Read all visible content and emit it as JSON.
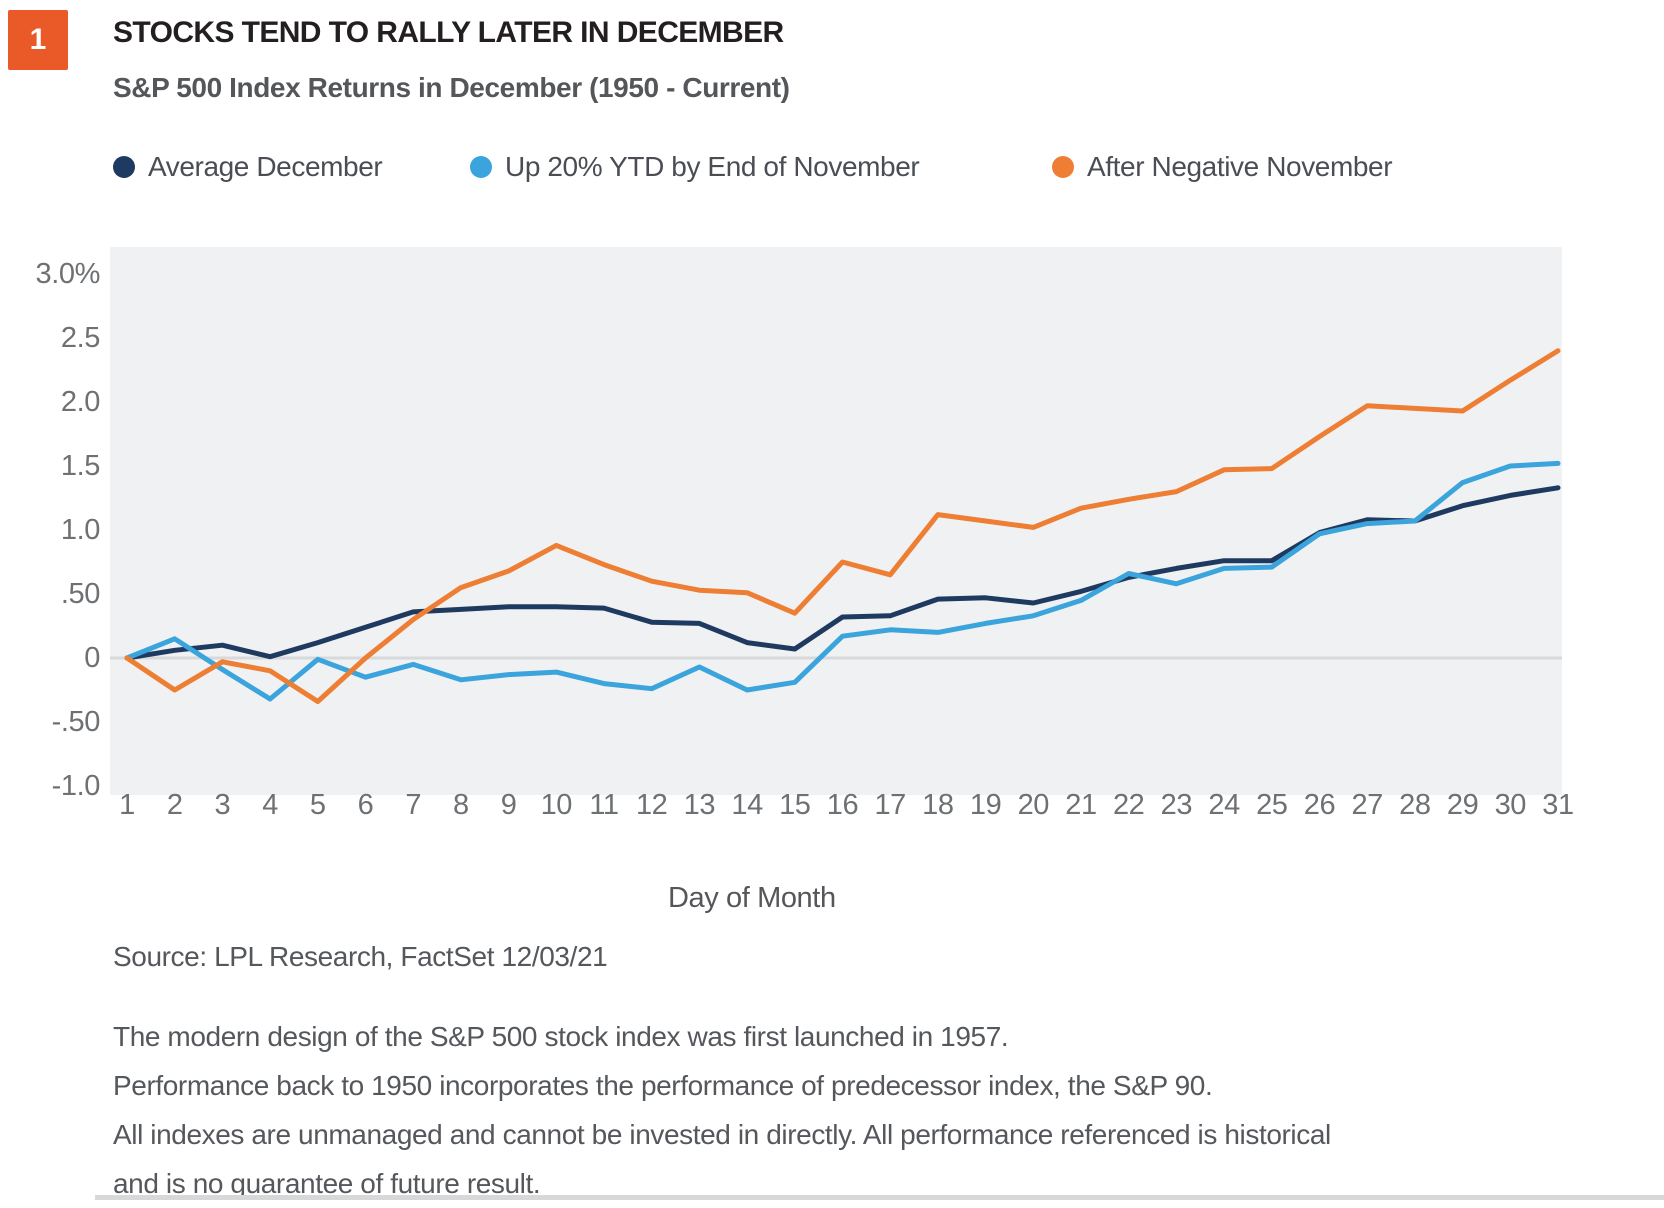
{
  "badge": {
    "number": "1",
    "color": "#EA5A28"
  },
  "header": {
    "title": "STOCKS TEND TO RALLY LATER IN DECEMBER",
    "subtitle": "S&P 500 Index Returns in December (1950 - Current)"
  },
  "legend": [
    {
      "label": "Average December",
      "color": "#1F3A60"
    },
    {
      "label": "Up 20% YTD by End of November",
      "color": "#3BA4DC"
    },
    {
      "label": "After Negative November",
      "color": "#ED7E33"
    }
  ],
  "chart_data": {
    "type": "line",
    "title": "STOCKS TEND TO RALLY LATER IN DECEMBER",
    "subtitle": "S&P 500 Index Returns in December (1950 - Current)",
    "xlabel": "Day of Month",
    "ylabel": "",
    "x": [
      1,
      2,
      3,
      4,
      5,
      6,
      7,
      8,
      9,
      10,
      11,
      12,
      13,
      14,
      15,
      16,
      17,
      18,
      19,
      20,
      21,
      22,
      23,
      24,
      25,
      26,
      27,
      28,
      29,
      30,
      31
    ],
    "series": [
      {
        "name": "Average December",
        "data_name": "average-december-line",
        "color": "#1F3A60",
        "values": [
          0.0,
          0.06,
          0.1,
          0.01,
          0.12,
          0.24,
          0.36,
          0.38,
          0.4,
          0.4,
          0.39,
          0.28,
          0.27,
          0.12,
          0.07,
          0.32,
          0.33,
          0.46,
          0.47,
          0.43,
          0.52,
          0.63,
          0.7,
          0.76,
          0.76,
          0.98,
          1.08,
          1.07,
          1.19,
          1.27,
          1.33
        ]
      },
      {
        "name": "Up 20% YTD by End of November",
        "data_name": "up-20-ytd-line",
        "color": "#3BA4DC",
        "values": [
          0.0,
          0.15,
          -0.09,
          -0.32,
          -0.01,
          -0.15,
          -0.05,
          -0.17,
          -0.13,
          -0.11,
          -0.2,
          -0.24,
          -0.07,
          -0.25,
          -0.19,
          0.17,
          0.22,
          0.2,
          0.27,
          0.33,
          0.45,
          0.66,
          0.58,
          0.7,
          0.71,
          0.97,
          1.05,
          1.07,
          1.37,
          1.5,
          1.52
        ]
      },
      {
        "name": "After Negative November",
        "data_name": "after-negative-november-line",
        "color": "#ED7E33",
        "values": [
          0.0,
          -0.25,
          -0.03,
          -0.1,
          -0.34,
          0.0,
          0.3,
          0.55,
          0.68,
          0.88,
          0.73,
          0.6,
          0.53,
          0.51,
          0.35,
          0.75,
          0.65,
          1.12,
          1.07,
          1.02,
          1.17,
          1.24,
          1.3,
          1.47,
          1.48,
          1.73,
          1.97,
          1.95,
          1.93,
          2.17,
          2.4
        ]
      }
    ],
    "y_ticks": [
      {
        "label": "3.0%",
        "value": 3.0
      },
      {
        "label": "2.5",
        "value": 2.5
      },
      {
        "label": "2.0",
        "value": 2.0
      },
      {
        "label": "1.5",
        "value": 1.5
      },
      {
        "label": "1.0",
        "value": 1.0
      },
      {
        "label": ".50",
        "value": 0.5
      },
      {
        "label": "0",
        "value": 0.0
      },
      {
        "label": "-.50",
        "value": -0.5
      },
      {
        "label": "-1.0",
        "value": -1.0
      }
    ],
    "ylim": [
      -1.07,
      3.21
    ],
    "grid": "zero-line-only",
    "legend_position": "top",
    "plot_bg": "#F0F1F2",
    "zero_line_color": "#D8D9DB"
  },
  "footer": {
    "source": "Source: LPL Research, FactSet  12/03/21",
    "notes": [
      "The modern design of the S&P 500 stock index was first launched in 1957.",
      "Performance back to 1950 incorporates the performance of predecessor index, the S&P 90.",
      "All indexes are unmanaged and cannot be invested in directly. All performance referenced is historical",
      "and is no guarantee of future result."
    ]
  }
}
